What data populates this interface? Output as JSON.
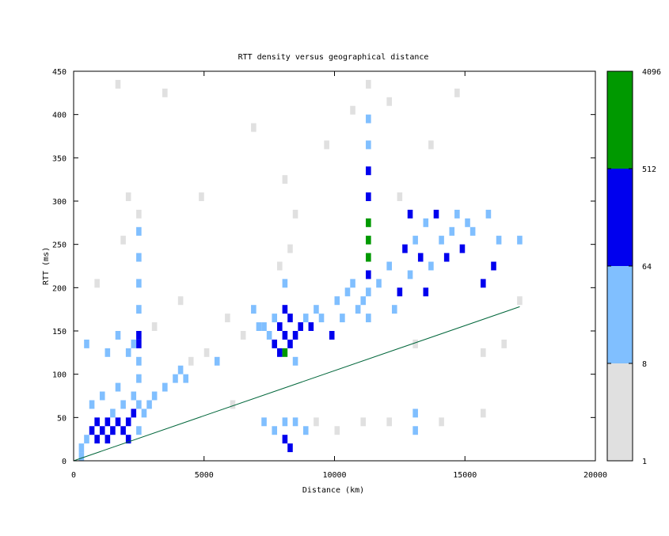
{
  "chart_data": {
    "type": "heatmap",
    "title": "RTT density versus geographical distance",
    "xlabel": "Distance (km)",
    "ylabel": "RTT (ms)",
    "xlim": [
      0,
      20000
    ],
    "ylim": [
      0,
      450
    ],
    "xticks": [
      0,
      5000,
      10000,
      15000,
      20000
    ],
    "yticks": [
      0,
      50,
      100,
      150,
      200,
      250,
      300,
      350,
      400,
      450
    ],
    "cell_size": [
      200,
      10
    ],
    "colorbar": {
      "ticks": [
        1,
        8,
        64,
        512,
        4096
      ],
      "colors": [
        "#e0e0e0",
        "#80bfff",
        "#0000ee",
        "#009900"
      ]
    },
    "line": {
      "x": [
        0,
        17100
      ],
      "y": [
        0,
        178
      ],
      "color": "#00663a"
    },
    "cells": {
      "x": [
        200,
        200,
        400,
        600,
        800,
        800,
        1000,
        1200,
        1200,
        1400,
        1400,
        1600,
        1800,
        1800,
        2000,
        2000,
        2200,
        2200,
        2400,
        2400,
        2600,
        2800,
        600,
        1000,
        1600,
        3000,
        3400,
        3800,
        4000,
        4200,
        4400,
        2400,
        2400,
        2400,
        2400,
        2400,
        2400,
        2400,
        2400,
        2400,
        2200,
        2000,
        1600,
        1200,
        400,
        800,
        1800,
        2000,
        3000,
        4000,
        5000,
        5400,
        5800,
        6000,
        6400,
        6800,
        7000,
        7200,
        7400,
        7600,
        7600,
        7800,
        7800,
        8000,
        8000,
        8000,
        8200,
        8200,
        8400,
        8400,
        8600,
        8800,
        9000,
        9200,
        9400,
        9800,
        10000,
        10200,
        10400,
        10600,
        10800,
        11000,
        8000,
        7800,
        8200,
        8400,
        8000,
        7200,
        7600,
        8000,
        8000,
        8200,
        8400,
        8800,
        9200,
        10000,
        11000,
        12000,
        13000,
        13000,
        14000,
        15600,
        11200,
        11200,
        11200,
        11200,
        11200,
        11200,
        11200,
        11200,
        11200,
        11200,
        11200,
        11600,
        12000,
        12200,
        12400,
        12600,
        12800,
        12800,
        13000,
        13200,
        13400,
        13400,
        13600,
        13800,
        14000,
        14200,
        14400,
        14600,
        14800,
        15000,
        15200,
        15600,
        15800,
        16000,
        16200,
        17000,
        17000,
        16400,
        15600,
        13000,
        12400,
        13600,
        14600,
        12000,
        10600,
        9600,
        6800,
        3400,
        1600,
        4800
      ],
      "y": [
        0,
        10,
        20,
        30,
        20,
        40,
        30,
        20,
        40,
        30,
        50,
        40,
        30,
        60,
        40,
        20,
        50,
        70,
        30,
        60,
        50,
        60,
        60,
        70,
        80,
        70,
        80,
        90,
        100,
        90,
        110,
        90,
        110,
        130,
        140,
        170,
        200,
        230,
        260,
        280,
        130,
        120,
        140,
        120,
        130,
        200,
        250,
        300,
        150,
        180,
        120,
        110,
        160,
        60,
        140,
        170,
        150,
        150,
        140,
        130,
        160,
        120,
        150,
        120,
        140,
        170,
        130,
        160,
        140,
        110,
        150,
        160,
        150,
        170,
        160,
        140,
        180,
        160,
        190,
        200,
        170,
        180,
        200,
        220,
        240,
        280,
        320,
        40,
        30,
        20,
        40,
        10,
        40,
        30,
        40,
        30,
        40,
        40,
        50,
        30,
        40,
        50,
        160,
        190,
        210,
        230,
        250,
        270,
        300,
        330,
        360,
        390,
        430,
        200,
        220,
        170,
        190,
        240,
        210,
        280,
        250,
        230,
        270,
        190,
        220,
        280,
        250,
        230,
        260,
        280,
        240,
        270,
        260,
        200,
        280,
        220,
        250,
        250,
        180,
        130,
        120,
        130,
        300,
        360,
        420,
        410,
        400,
        360,
        380,
        420,
        430,
        300
      ],
      "values": [
        20,
        40,
        30,
        80,
        100,
        70,
        90,
        150,
        120,
        100,
        40,
        130,
        90,
        50,
        140,
        70,
        100,
        30,
        60,
        40,
        20,
        15,
        20,
        12,
        10,
        12,
        10,
        14,
        20,
        30,
        4,
        12,
        20,
        90,
        70,
        15,
        12,
        20,
        14,
        5,
        20,
        18,
        10,
        12,
        10,
        4,
        4,
        3,
        3,
        2,
        3,
        40,
        4,
        2,
        6,
        20,
        30,
        20,
        40,
        80,
        60,
        150,
        200,
        600,
        300,
        100,
        250,
        120,
        150,
        40,
        70,
        30,
        70,
        20,
        30,
        80,
        20,
        12,
        15,
        12,
        10,
        20,
        10,
        6,
        5,
        3,
        3,
        20,
        12,
        80,
        60,
        70,
        15,
        8,
        5,
        4,
        6,
        5,
        20,
        10,
        4,
        3,
        12,
        30,
        80,
        700,
        900,
        600,
        120,
        70,
        15,
        10,
        3,
        15,
        20,
        30,
        80,
        70,
        30,
        80,
        40,
        100,
        60,
        70,
        40,
        80,
        30,
        90,
        30,
        20,
        70,
        30,
        20,
        70,
        15,
        80,
        10,
        14,
        4,
        3,
        4,
        4,
        3,
        2,
        2,
        2,
        2,
        2,
        2,
        2,
        2,
        2
      ]
    }
  }
}
